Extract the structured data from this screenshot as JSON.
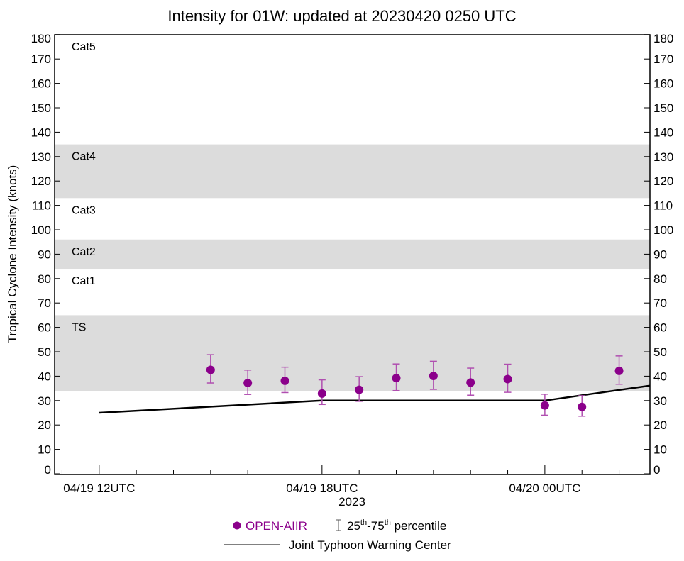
{
  "chart_data": {
    "type": "scatter",
    "title": "Intensity for 01W: updated at 20230420 0250 UTC",
    "ylabel": "Tropical Cyclone Intensity (knots)",
    "xlabel": "2023",
    "ylim": [
      0,
      180
    ],
    "yticks": [
      0,
      10,
      20,
      30,
      40,
      50,
      60,
      70,
      80,
      90,
      100,
      110,
      120,
      130,
      140,
      150,
      160,
      170,
      180
    ],
    "x_units": "hours since 04/19 00UTC",
    "xlim": [
      10.8,
      26.83
    ],
    "xticks": [
      {
        "x": 12,
        "label": "04/19 12UTC"
      },
      {
        "x": 18,
        "label": "04/19 18UTC"
      },
      {
        "x": 24,
        "label": "04/20 00UTC"
      }
    ],
    "bands": [
      {
        "label": "TS",
        "from": 34,
        "to": 65,
        "shaded": true
      },
      {
        "label": "Cat1",
        "from": 65,
        "to": 84,
        "shaded": false
      },
      {
        "label": "Cat2",
        "from": 84,
        "to": 96,
        "shaded": true
      },
      {
        "label": "Cat3",
        "from": 96,
        "to": 113,
        "shaded": false
      },
      {
        "label": "Cat4",
        "from": 113,
        "to": 135,
        "shaded": true
      },
      {
        "label": "Cat5",
        "from": 135,
        "to": 180,
        "shaded": false
      }
    ],
    "series": [
      {
        "name": "OPEN-AIIR",
        "color": "#8b008b",
        "points": [
          {
            "x": 15,
            "y": 42.6,
            "p25": 37.2,
            "p75": 48.8
          },
          {
            "x": 16,
            "y": 37.2,
            "p25": 32.5,
            "p75": 42.5
          },
          {
            "x": 17,
            "y": 38.1,
            "p25": 33.3,
            "p75": 43.7
          },
          {
            "x": 18,
            "y": 32.9,
            "p25": 28.4,
            "p75": 38.5
          },
          {
            "x": 19,
            "y": 34.4,
            "p25": 29.7,
            "p75": 39.8
          },
          {
            "x": 20,
            "y": 39.2,
            "p25": 34.1,
            "p75": 45.0
          },
          {
            "x": 21,
            "y": 40.1,
            "p25": 34.6,
            "p75": 46.1
          },
          {
            "x": 22,
            "y": 37.4,
            "p25": 32.2,
            "p75": 43.3
          },
          {
            "x": 23,
            "y": 38.8,
            "p25": 33.4,
            "p75": 44.9
          },
          {
            "x": 24,
            "y": 28.0,
            "p25": 24.0,
            "p75": 32.6
          },
          {
            "x": 25,
            "y": 27.4,
            "p25": 23.6,
            "p75": 32.0
          },
          {
            "x": 26,
            "y": 42.2,
            "p25": 36.7,
            "p75": 48.3
          }
        ]
      },
      {
        "name": "Joint Typhoon Warning Center",
        "color": "#000000",
        "type": "line",
        "points": [
          {
            "x": 12,
            "y": 25
          },
          {
            "x": 18,
            "y": 30
          },
          {
            "x": 24,
            "y": 30
          },
          {
            "x": 30,
            "y": 43
          }
        ]
      }
    ],
    "legend": {
      "placement": "bottom-center",
      "marker_label": "OPEN-AIIR",
      "percentile_base1": "25",
      "percentile_sup1": "th",
      "percentile_dash": "-75",
      "percentile_sup2": "th",
      "percentile_text": " percentile",
      "line_label": "Joint Typhoon Warning Center"
    },
    "colors": {
      "band": "#dcdcdc",
      "marker": "#8b008b",
      "errorbar": "#b04fb0"
    }
  }
}
